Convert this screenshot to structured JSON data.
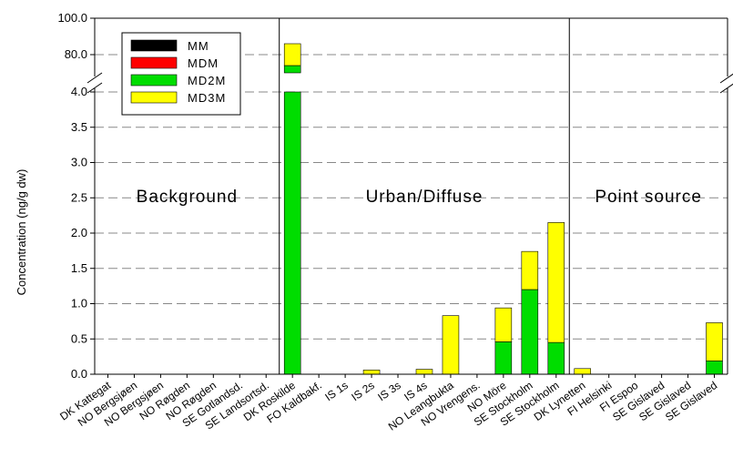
{
  "chart_data": {
    "type": "bar",
    "stacked": true,
    "ylabel": "Concentration (ng/g dw)",
    "y_axis": {
      "broken": true,
      "lower_range": [
        0,
        4.0
      ],
      "upper_range": [
        70,
        100
      ],
      "lower_ticks": [
        "0.0",
        "0.5",
        "1.0",
        "1.5",
        "2.0",
        "2.5",
        "3.0",
        "3.5",
        "4.0"
      ],
      "upper_ticks": [
        "80.0",
        "100.0"
      ]
    },
    "grid": "horizontal dashed",
    "legend_position": "top-left",
    "categories": [
      "DK Kattegat",
      "NO Bergsjøen",
      "NO Bergsjøen",
      "NO Røgden",
      "NO Røgden",
      "SE Gotlandsd.",
      "SE Landsortsd.",
      "DK Roskilde",
      "FO Kaldbakf.",
      "IS 1s",
      "IS 2s",
      "IS 3s",
      "IS 4s",
      "NO Leangbukta",
      "NO Vrengens.",
      "NO Möre",
      "SE Stockholm",
      "SE Stockholm",
      "DK  Lynetten",
      "FI  Helsinki",
      "FI Espoo",
      "SE Gislaved",
      "SE Gislaved",
      "SE Gislaved"
    ],
    "series": [
      {
        "name": "MM",
        "color": "#000000",
        "values": [
          0,
          0,
          0,
          0,
          0,
          0,
          0,
          0,
          0,
          0,
          0,
          0,
          0,
          0,
          0,
          0,
          0,
          0,
          0,
          0,
          0,
          0,
          0,
          0
        ]
      },
      {
        "name": "MDM",
        "color": "#ff0000",
        "values": [
          0,
          0,
          0,
          0,
          0,
          0,
          0,
          0,
          0,
          0,
          0,
          0,
          0,
          0,
          0,
          0,
          0,
          0,
          0,
          0,
          0,
          0,
          0,
          0
        ]
      },
      {
        "name": "MD2M",
        "color": "#00dd00",
        "values": [
          0,
          0,
          0,
          0,
          0,
          0,
          0,
          74,
          0,
          0,
          0,
          0,
          0,
          0,
          0,
          0.46,
          1.2,
          0.45,
          0,
          0,
          0,
          0,
          0,
          0.19
        ]
      },
      {
        "name": "MD3M",
        "color": "#ffff00",
        "values": [
          0,
          0,
          0,
          0,
          0,
          0,
          0,
          12,
          0,
          0,
          0.06,
          0,
          0.07,
          0.83,
          0,
          0.48,
          0.54,
          1.7,
          0.08,
          0,
          0,
          0,
          0,
          0.54
        ]
      }
    ],
    "regions": [
      {
        "label": "Background",
        "start_index": 0,
        "end_index": 6
      },
      {
        "label": "Urban/Diffuse",
        "start_index": 7,
        "end_index": 17
      },
      {
        "label": "Point source",
        "start_index": 18,
        "end_index": 23
      }
    ]
  }
}
